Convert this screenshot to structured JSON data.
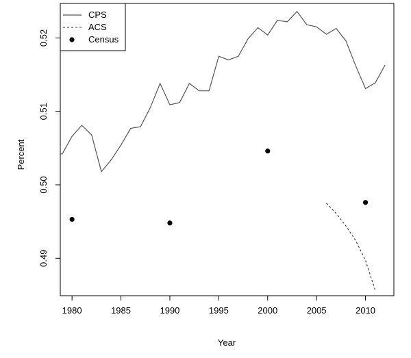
{
  "chart_data": {
    "type": "line",
    "title": "",
    "xlabel": "Year",
    "ylabel": "Percent",
    "xlim": [
      1978.8,
      2012.9
    ],
    "ylim": [
      0.4849,
      0.5247
    ],
    "xticks": [
      1980,
      1985,
      1990,
      1995,
      2000,
      2005,
      2010
    ],
    "yticks": [
      0.49,
      0.5,
      0.51,
      0.52
    ],
    "ytick_labels": [
      "0.49",
      "0.50",
      "0.51",
      "0.52"
    ],
    "grid": false,
    "legend_position": "top-left",
    "series": [
      {
        "name": "CPS",
        "style": "solid",
        "color": "#555555",
        "x": [
          1978.8,
          1979,
          1980,
          1981,
          1982,
          1983,
          1984,
          1985,
          1986,
          1987,
          1988,
          1989,
          1990,
          1991,
          1992,
          1993,
          1994,
          1995,
          1996,
          1997,
          1998,
          1999,
          2000,
          2001,
          2002,
          2003,
          2004,
          2005,
          2006,
          2007,
          2008,
          2009,
          2010,
          2011,
          2012
        ],
        "y": [
          0.5042,
          0.5042,
          0.5066,
          0.5081,
          0.5068,
          0.5018,
          0.5034,
          0.5054,
          0.5077,
          0.5079,
          0.5105,
          0.5138,
          0.5109,
          0.5112,
          0.5138,
          0.5128,
          0.5128,
          0.5175,
          0.517,
          0.5175,
          0.5199,
          0.5214,
          0.5204,
          0.5224,
          0.5222,
          0.5236,
          0.5218,
          0.5215,
          0.5205,
          0.5213,
          0.5196,
          0.5162,
          0.5131,
          0.5139,
          0.5163
        ]
      },
      {
        "name": "ACS",
        "style": "dashed",
        "color": "#333333",
        "x": [
          2006,
          2007,
          2008,
          2009,
          2010,
          2011
        ],
        "y": [
          0.4975,
          0.4961,
          0.4944,
          0.4924,
          0.4897,
          0.4856
        ]
      },
      {
        "name": "Census",
        "style": "points",
        "color": "#000000",
        "x": [
          1980,
          1990,
          2000,
          2010
        ],
        "y": [
          0.4953,
          0.4948,
          0.5046,
          0.4976
        ]
      }
    ]
  }
}
